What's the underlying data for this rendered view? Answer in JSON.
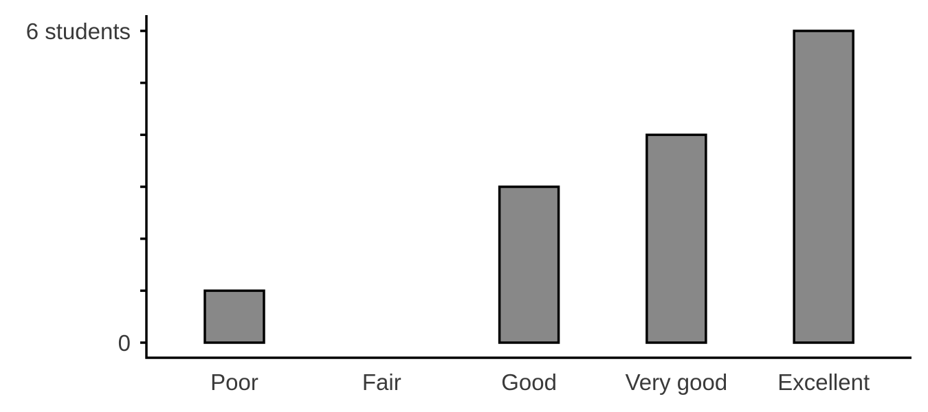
{
  "chart_data": {
    "type": "bar",
    "categories": [
      "Poor",
      "Fair",
      "Good",
      "Very good",
      "Excellent"
    ],
    "values": [
      1,
      0,
      3,
      4,
      6
    ],
    "ylim": [
      0,
      6
    ],
    "y_tick_values": [
      0,
      1,
      2,
      3,
      4,
      5,
      6
    ],
    "y_tick_labels": [
      "0",
      "",
      "",
      "",
      "",
      "",
      "6 students"
    ],
    "title": "",
    "xlabel": "",
    "ylabel": "",
    "grid": false,
    "colors": {
      "bar_fill": "#888888",
      "bar_stroke": "#000000",
      "axis": "#000000",
      "text": "#3a3a3a"
    }
  }
}
